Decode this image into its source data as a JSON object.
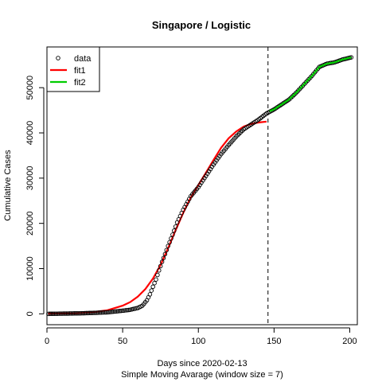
{
  "chart_data": {
    "type": "scatter",
    "title": "Singapore / Logistic",
    "xlabel": "Days since 2020-02-13",
    "xlabel_sub": "Simple Moving Avarage (window size = 7)",
    "ylabel": "Cumulative Cases",
    "xlim": [
      0,
      205
    ],
    "ylim": [
      -2400,
      59000
    ],
    "xticks": [
      0,
      50,
      100,
      150,
      200
    ],
    "yticks": [
      0,
      10000,
      20000,
      30000,
      40000,
      50000
    ],
    "vline_x": 146,
    "grid": false,
    "legend_position": "top-left",
    "legend": [
      {
        "label": "data",
        "kind": "point",
        "color": "#000000"
      },
      {
        "label": "fit1",
        "kind": "line",
        "color": "#ff0000"
      },
      {
        "label": "fit2",
        "kind": "line",
        "color": "#00cd00"
      }
    ],
    "series": [
      {
        "name": "data",
        "kind": "points",
        "color": "#000000",
        "x_start": 1,
        "x_end": 201,
        "anchors": [
          [
            1,
            0
          ],
          [
            10,
            50
          ],
          [
            20,
            100
          ],
          [
            30,
            200
          ],
          [
            40,
            350
          ],
          [
            50,
            700
          ],
          [
            55,
            900
          ],
          [
            60,
            1300
          ],
          [
            63,
            1800
          ],
          [
            66,
            3000
          ],
          [
            68,
            4300
          ],
          [
            70,
            6000
          ],
          [
            72,
            7600
          ],
          [
            74,
            9600
          ],
          [
            76,
            11500
          ],
          [
            78,
            13200
          ],
          [
            80,
            15000
          ],
          [
            83,
            17500
          ],
          [
            86,
            20200
          ],
          [
            90,
            23000
          ],
          [
            95,
            26000
          ],
          [
            100,
            28000
          ],
          [
            105,
            30500
          ],
          [
            110,
            33000
          ],
          [
            115,
            35300
          ],
          [
            120,
            37300
          ],
          [
            125,
            39200
          ],
          [
            130,
            40800
          ],
          [
            135,
            41900
          ],
          [
            140,
            43000
          ],
          [
            145,
            44300
          ],
          [
            150,
            45200
          ],
          [
            155,
            46300
          ],
          [
            160,
            47400
          ],
          [
            165,
            49000
          ],
          [
            170,
            50800
          ],
          [
            175,
            52600
          ],
          [
            180,
            54600
          ],
          [
            185,
            55300
          ],
          [
            190,
            55600
          ],
          [
            195,
            56200
          ],
          [
            201,
            56700
          ]
        ]
      },
      {
        "name": "fit1",
        "kind": "line",
        "color": "#ff0000",
        "points": [
          [
            1,
            50
          ],
          [
            20,
            120
          ],
          [
            30,
            350
          ],
          [
            40,
            800
          ],
          [
            50,
            1800
          ],
          [
            55,
            2600
          ],
          [
            60,
            3800
          ],
          [
            65,
            5500
          ],
          [
            70,
            7800
          ],
          [
            75,
            10800
          ],
          [
            80,
            14500
          ],
          [
            85,
            18500
          ],
          [
            90,
            22300
          ],
          [
            95,
            25700
          ],
          [
            100,
            28500
          ],
          [
            105,
            31200
          ],
          [
            110,
            34000
          ],
          [
            115,
            36700
          ],
          [
            120,
            38800
          ],
          [
            125,
            40300
          ],
          [
            130,
            41400
          ],
          [
            135,
            42000
          ],
          [
            140,
            42300
          ],
          [
            145,
            42500
          ]
        ]
      },
      {
        "name": "fit2",
        "kind": "line",
        "color": "#00cd00",
        "points": [
          [
            147,
            44800
          ],
          [
            150,
            45200
          ],
          [
            155,
            46300
          ],
          [
            160,
            47400
          ],
          [
            165,
            49000
          ],
          [
            170,
            50800
          ],
          [
            175,
            52600
          ],
          [
            180,
            54600
          ],
          [
            185,
            55300
          ],
          [
            190,
            55600
          ],
          [
            195,
            56200
          ],
          [
            201,
            56700
          ]
        ]
      }
    ]
  }
}
